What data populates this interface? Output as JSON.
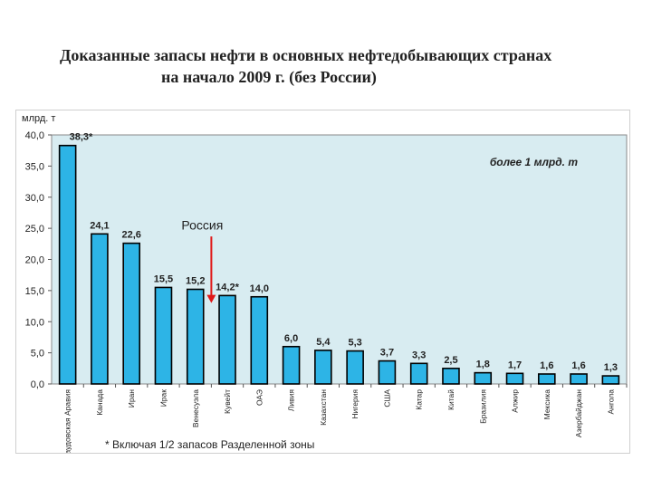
{
  "title": {
    "line1": "Доказанные запасы нефти  в основных нефтедобывающих странах",
    "line2": "на начало 2009 г. (без России)"
  },
  "footnote": "* Включая 1/2 запасов Разделенной зоны",
  "colors": {
    "plot_bg": "#d8ecf1",
    "bar_fill": "#2db4e6",
    "bar_stroke": "#000000",
    "arrow": "#e01818"
  },
  "chart_data": {
    "type": "bar",
    "ylabel": "млрд. т",
    "ylim": [
      0,
      40
    ],
    "yticks": [
      "0,0",
      "5,0",
      "10,0",
      "15,0",
      "20,0",
      "25,0",
      "30,0",
      "35,0",
      "40,0"
    ],
    "grid": false,
    "categories": [
      "Саудовская Аравия",
      "Канада",
      "Иран",
      "Ирак",
      "Венесуэла",
      "Кувейт",
      "ОАЭ",
      "Ливия",
      "Казахстан",
      "Нигерия",
      "США",
      "Катар",
      "Китай",
      "Бразилия",
      "Алжир",
      "Мексика",
      "Азербайджан",
      "Ангола"
    ],
    "values": [
      38.3,
      24.1,
      22.6,
      15.5,
      15.2,
      14.2,
      14.0,
      6.0,
      5.4,
      5.3,
      3.7,
      3.3,
      2.5,
      1.8,
      1.7,
      1.6,
      1.6,
      1.3
    ],
    "data_labels": [
      "38,3*",
      "24,1",
      "22,6",
      "15,5",
      "15,2",
      "14,2*",
      "14,0",
      "6,0",
      "5,4",
      "5,3",
      "3,7",
      "3,3",
      "2,5",
      "1,8",
      "1,7",
      "1,6",
      "1,6",
      "1,3"
    ],
    "annotations": {
      "threshold_note": "более 1 млрд. т",
      "russia_label": "Россия",
      "russia_value": 13.0,
      "russia_position_between": [
        "Венесуэла",
        "Кувейт"
      ]
    }
  }
}
